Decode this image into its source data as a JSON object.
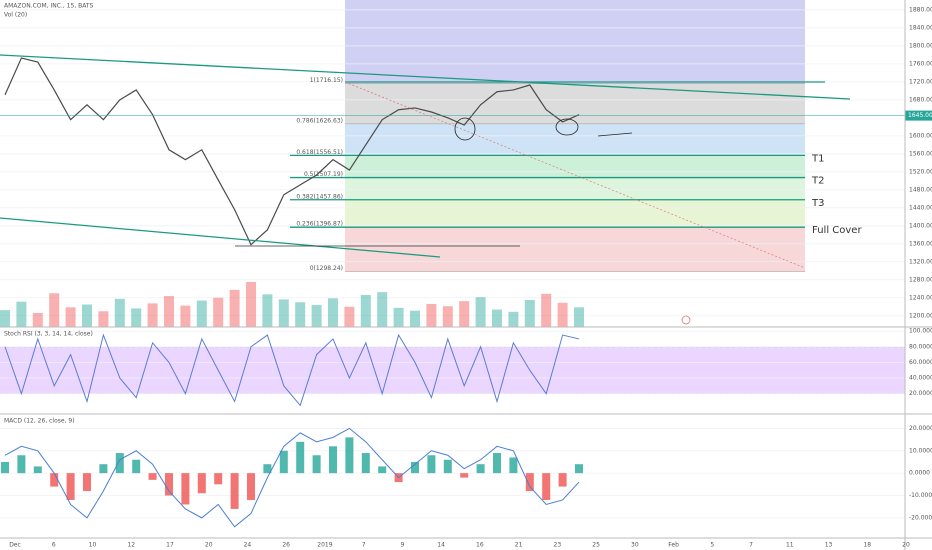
{
  "chart_data": [
    {
      "type": "line",
      "title": "AMAZON.COM, INC., 15, BATS",
      "subtitle": "Vol (20)",
      "values": [
        1691,
        1773,
        1764,
        1702,
        1636,
        1669,
        1636,
        1680,
        1702,
        1647,
        1569,
        1547,
        1569,
        1502,
        1436,
        1358,
        1391,
        1469,
        1491,
        1513,
        1547,
        1524,
        1580,
        1636,
        1658,
        1662,
        1653,
        1640,
        1624,
        1669,
        1698,
        1702,
        1713,
        1658,
        1631,
        1647
      ],
      "color": "#4a4a4a",
      "up_color": "#26a69a",
      "down_color": "#ef5350",
      "volume": [
        30,
        45,
        25,
        60,
        35,
        40,
        28,
        50,
        33,
        42,
        55,
        38,
        47,
        52,
        66,
        80,
        58,
        49,
        44,
        39,
        51,
        36,
        57,
        62,
        34,
        29,
        41,
        37,
        46,
        53,
        31,
        27,
        48,
        59,
        43,
        35
      ],
      "ylim": [
        1175,
        1902
      ],
      "yticks": [
        {
          "value": 1880,
          "label": "1880.00"
        },
        {
          "value": 1840,
          "label": "1840.00"
        },
        {
          "value": 1800,
          "label": "1800.00"
        },
        {
          "value": 1760,
          "label": "1760.00"
        },
        {
          "value": 1720,
          "label": "1720.00"
        },
        {
          "value": 1680,
          "label": "1680.00"
        },
        {
          "value": 1600,
          "label": "1600.00"
        },
        {
          "value": 1560,
          "label": "1560.00"
        },
        {
          "value": 1520,
          "label": "1520.00"
        },
        {
          "value": 1480,
          "label": "1480.00"
        },
        {
          "value": 1440,
          "label": "1440.00"
        },
        {
          "value": 1400,
          "label": "1400.00"
        },
        {
          "value": 1360,
          "label": "1360.00"
        },
        {
          "value": 1320,
          "label": "1320.00"
        },
        {
          "value": 1280,
          "label": "1280.00"
        },
        {
          "value": 1240,
          "label": "1240.00"
        },
        {
          "value": 1200,
          "label": "1200.00"
        }
      ],
      "last_price": {
        "value": 1645,
        "label": "1645.00"
      },
      "grid": true,
      "fib": [
        {
          "label": "1(1716.15)",
          "value": 1716.15,
          "color": "#dcdcdc"
        },
        {
          "label": "0.786(1626.63)",
          "value": 1626.63,
          "color": "#cfe3f7"
        },
        {
          "label": "0.618(1556.51)",
          "value": 1556.51,
          "color": "#cdf0d9",
          "target": "T1"
        },
        {
          "label": "0.5(1507.19)",
          "value": 1507.19,
          "color": "#dcf5dc",
          "target": "T2"
        },
        {
          "label": "0.382(1457.86)",
          "value": 1457.86,
          "color": "#e8f5d4",
          "target": "T3"
        },
        {
          "label": "0.236(1396.87)",
          "value": 1396.87,
          "color": "#f7d7d7",
          "target": "Full Cover"
        },
        {
          "label": "0(1298.24)",
          "value": 1298.24
        }
      ],
      "fib_top_color": "#cfd0f3",
      "xticks": [
        "Dec",
        "6",
        "10",
        "12",
        "17",
        "20",
        "24",
        "26",
        "2019",
        "7",
        "9",
        "14",
        "16",
        "21",
        "23",
        "25",
        "30",
        "Feb",
        "5",
        "7",
        "11",
        "13",
        "18",
        "20"
      ]
    },
    {
      "type": "oscillator",
      "title": "Stoch RSI (3, 3, 14, 14, close)",
      "color": "#5b7bd5",
      "values": [
        80,
        20,
        90,
        30,
        70,
        10,
        95,
        40,
        15,
        85,
        60,
        20,
        90,
        50,
        10,
        80,
        95,
        30,
        5,
        70,
        90,
        40,
        85,
        20,
        95,
        60,
        15,
        90,
        30,
        80,
        10,
        85,
        50,
        20,
        95,
        90
      ],
      "band": [
        20,
        80
      ],
      "band_color": "#e6ccff",
      "ylim": [
        -6,
        104
      ],
      "yticks": [
        {
          "value": 100,
          "label": "100.0000"
        },
        {
          "value": 80,
          "label": "80.0000"
        },
        {
          "value": 60,
          "label": "60.0000"
        },
        {
          "value": 40,
          "label": "40.0000"
        },
        {
          "value": 20,
          "label": "20.0000"
        }
      ]
    },
    {
      "type": "macd",
      "title": "MACD (12, 26, close, 9)",
      "color": "#4a7fd4",
      "up_color": "#26a69a",
      "down_color": "#ef5350",
      "values": [
        8,
        12,
        10,
        0,
        -14,
        -20,
        -8,
        6,
        10,
        4,
        -8,
        -16,
        -20,
        -14,
        -24,
        -18,
        -2,
        12,
        18,
        14,
        16,
        20,
        14,
        6,
        -2,
        4,
        10,
        8,
        2,
        6,
        12,
        10,
        -6,
        -14,
        -12,
        -4
      ],
      "histogram": [
        5,
        8,
        3,
        -6,
        -12,
        -8,
        4,
        9,
        6,
        -3,
        -10,
        -14,
        -9,
        -5,
        -16,
        -12,
        4,
        10,
        14,
        8,
        12,
        16,
        9,
        3,
        -4,
        5,
        8,
        6,
        -2,
        4,
        9,
        7,
        -8,
        -12,
        -6,
        4
      ],
      "ylim": [
        -29,
        26
      ],
      "yticks": [
        {
          "value": 20,
          "label": "20.0000"
        },
        {
          "value": 10,
          "label": "10.0000"
        },
        {
          "value": 0,
          "label": "0.0000"
        },
        {
          "value": -10,
          "label": "-10.0000"
        },
        {
          "value": -20,
          "label": "-20.0000"
        }
      ]
    }
  ]
}
